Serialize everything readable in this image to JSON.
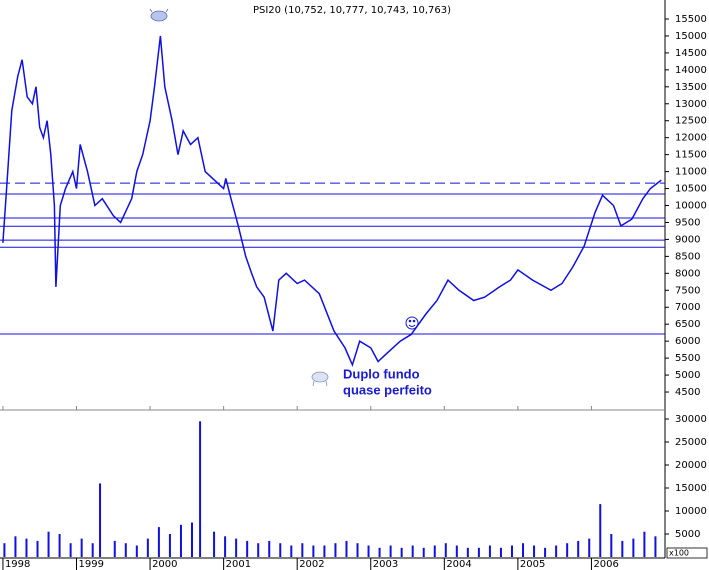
{
  "chart_data": [
    {
      "type": "line",
      "title": "PSI20 (10,752, 10,777, 10,743, 10,763)",
      "color": "#1010e0",
      "x": [
        1998.0,
        1998.05,
        1998.12,
        1998.2,
        1998.26,
        1998.33,
        1998.4,
        1998.45,
        1998.5,
        1998.55,
        1998.6,
        1998.65,
        1998.7,
        1998.72,
        1998.78,
        1998.85,
        1998.95,
        1999.0,
        1999.05,
        1999.15,
        1999.25,
        1999.35,
        1999.5,
        1999.6,
        1999.75,
        1999.82,
        1999.9,
        2000.0,
        2000.06,
        2000.14,
        2000.2,
        2000.3,
        2000.38,
        2000.45,
        2000.55,
        2000.65,
        2000.75,
        2000.9,
        2001.0,
        2001.03,
        2001.1,
        2001.2,
        2001.3,
        2001.38,
        2001.45,
        2001.55,
        2001.67,
        2001.75,
        2001.85,
        2002.0,
        2002.1,
        2002.3,
        2002.5,
        2002.65,
        2002.75,
        2002.85,
        2003.0,
        2003.1,
        2003.25,
        2003.4,
        2003.55,
        2003.75,
        2003.9,
        2004.05,
        2004.2,
        2004.4,
        2004.55,
        2004.75,
        2004.9,
        2005.0,
        2005.2,
        2005.45,
        2005.6,
        2005.75,
        2005.9,
        2006.05,
        2006.15,
        2006.3,
        2006.4,
        2006.55,
        2006.7,
        2006.8,
        2006.95
      ],
      "values": [
        8900,
        10500,
        12800,
        13800,
        14300,
        13200,
        13000,
        13500,
        12300,
        12000,
        12500,
        11500,
        10000,
        7600,
        10000,
        10500,
        11000,
        10500,
        11800,
        11000,
        10000,
        10200,
        9700,
        9500,
        10200,
        11000,
        11500,
        12500,
        13500,
        15000,
        13500,
        12500,
        11500,
        12200,
        11800,
        12000,
        11000,
        10700,
        10500,
        10800,
        10200,
        9400,
        8500,
        8000,
        7600,
        7300,
        6300,
        7800,
        8000,
        7700,
        7800,
        7400,
        6300,
        5800,
        5300,
        6000,
        5800,
        5400,
        5700,
        6000,
        6200,
        6800,
        7200,
        7800,
        7500,
        7200,
        7300,
        7600,
        7800,
        8100,
        7800,
        7500,
        7700,
        8200,
        8800,
        9800,
        10300,
        10000,
        9400,
        9600,
        10200,
        10500,
        10750
      ],
      "xlim": [
        1997.96,
        2007.0
      ],
      "xticks": [
        1998,
        1999,
        2000,
        2001,
        2002,
        2003,
        2004,
        2005,
        2006
      ],
      "ylim": [
        3970,
        16060
      ],
      "yticks": [
        4500,
        5000,
        5500,
        6000,
        6500,
        7000,
        7500,
        8000,
        8500,
        9000,
        9500,
        10000,
        10500,
        11000,
        11500,
        12000,
        12500,
        13000,
        13500,
        14000,
        14500,
        15000,
        15500
      ],
      "hlines": [
        {
          "value": 10660,
          "dashed": true
        },
        {
          "value": 10340,
          "dashed": false
        },
        {
          "value": 9630,
          "dashed": false
        },
        {
          "value": 9390,
          "dashed": false
        },
        {
          "value": 8980,
          "dashed": false
        },
        {
          "value": 8770,
          "dashed": false
        },
        {
          "value": 6210,
          "dashed": false
        }
      ],
      "annotations": [
        "Duplo fundo",
        "quase perfeito"
      ]
    },
    {
      "type": "bar",
      "color": "#1010e0",
      "unit_label": "x100",
      "x": [
        1998.02,
        1998.17,
        1998.32,
        1998.47,
        1998.62,
        1998.77,
        1998.92,
        1999.07,
        1999.22,
        1999.32,
        1999.52,
        1999.67,
        1999.82,
        1999.97,
        2000.12,
        2000.27,
        2000.42,
        2000.57,
        2000.68,
        2000.87,
        2001.02,
        2001.17,
        2001.32,
        2001.47,
        2001.62,
        2001.77,
        2001.92,
        2002.07,
        2002.22,
        2002.37,
        2002.52,
        2002.67,
        2002.82,
        2002.97,
        2003.12,
        2003.27,
        2003.42,
        2003.57,
        2003.72,
        2003.87,
        2004.02,
        2004.17,
        2004.32,
        2004.47,
        2004.62,
        2004.77,
        2004.92,
        2005.07,
        2005.22,
        2005.37,
        2005.52,
        2005.67,
        2005.82,
        2005.97,
        2006.12,
        2006.27,
        2006.42,
        2006.57,
        2006.72,
        2006.87
      ],
      "values": [
        3000,
        4500,
        4000,
        3500,
        5500,
        5000,
        3000,
        4000,
        3000,
        16000,
        3500,
        3000,
        2500,
        4000,
        6500,
        5000,
        7000,
        7500,
        29500,
        5500,
        4500,
        4000,
        3500,
        3000,
        3500,
        3000,
        2500,
        3000,
        2500,
        2500,
        3000,
        3500,
        3000,
        2500,
        2000,
        2500,
        2000,
        2500,
        2000,
        2500,
        3000,
        2500,
        2000,
        2000,
        2500,
        2000,
        2500,
        3000,
        2500,
        2000,
        2500,
        3000,
        3500,
        4000,
        11500,
        5000,
        3500,
        4000,
        5500,
        4500
      ],
      "xlim": [
        1997.96,
        2007.0
      ],
      "xticks": [
        1998,
        1999,
        2000,
        2001,
        2002,
        2003,
        2004,
        2005,
        2006
      ],
      "ylim": [
        0,
        31960
      ],
      "yticks": [
        5000,
        10000,
        15000,
        20000,
        25000,
        30000
      ]
    }
  ]
}
